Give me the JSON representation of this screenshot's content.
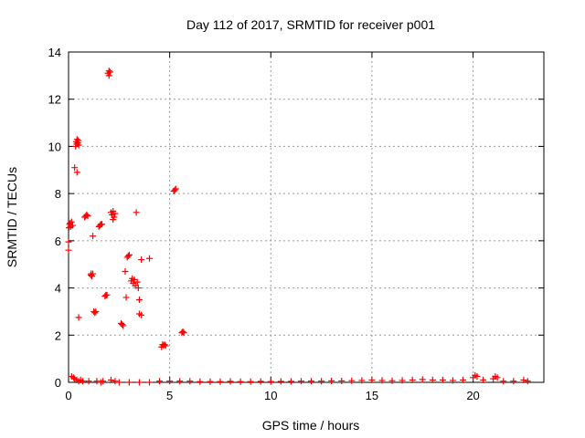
{
  "chart_data": {
    "type": "scatter",
    "title": "Day 112 of 2017, SRMTID for receiver p001",
    "xlabel": "GPS time / hours",
    "ylabel": "SRMTID / TECUs",
    "xlim": [
      0,
      23.5
    ],
    "ylim": [
      0,
      14
    ],
    "xticks": [
      0,
      5,
      10,
      15,
      20
    ],
    "yticks": [
      0,
      2,
      4,
      6,
      8,
      10,
      12,
      14
    ],
    "grid": true,
    "marker": "plus",
    "color": "#ff0000",
    "series": [
      {
        "name": "SRMTID",
        "points": [
          [
            0.0,
            5.6
          ],
          [
            0.0,
            5.95
          ],
          [
            0.02,
            6.55
          ],
          [
            0.05,
            6.7
          ],
          [
            0.08,
            6.75
          ],
          [
            0.1,
            6.6
          ],
          [
            0.15,
            6.8
          ],
          [
            0.2,
            6.65
          ],
          [
            0.15,
            0.25
          ],
          [
            0.25,
            0.2
          ],
          [
            0.3,
            0.15
          ],
          [
            0.4,
            0.1
          ],
          [
            0.5,
            0.05
          ],
          [
            0.6,
            0.1
          ],
          [
            0.7,
            0.05
          ],
          [
            0.3,
            9.1
          ],
          [
            0.35,
            10.0
          ],
          [
            0.38,
            10.2
          ],
          [
            0.4,
            10.1
          ],
          [
            0.42,
            10.3
          ],
          [
            0.45,
            10.15
          ],
          [
            0.48,
            10.25
          ],
          [
            0.5,
            10.05
          ],
          [
            0.42,
            8.9
          ],
          [
            0.5,
            2.75
          ],
          [
            0.8,
            7.0
          ],
          [
            0.85,
            7.05
          ],
          [
            0.9,
            7.1
          ],
          [
            0.95,
            7.05
          ],
          [
            1.0,
            0.05
          ],
          [
            1.1,
            4.55
          ],
          [
            1.12,
            4.6
          ],
          [
            1.15,
            4.5
          ],
          [
            1.2,
            4.6
          ],
          [
            1.2,
            6.2
          ],
          [
            1.25,
            3.0
          ],
          [
            1.3,
            2.95
          ],
          [
            1.35,
            3.0
          ],
          [
            1.4,
            0.05
          ],
          [
            1.6,
            0.0
          ],
          [
            1.5,
            6.6
          ],
          [
            1.55,
            6.65
          ],
          [
            1.6,
            6.7
          ],
          [
            1.65,
            6.7
          ],
          [
            1.7,
            0.05
          ],
          [
            1.8,
            3.65
          ],
          [
            1.85,
            3.7
          ],
          [
            1.9,
            3.7
          ],
          [
            1.95,
            13.1
          ],
          [
            2.0,
            13.2
          ],
          [
            2.05,
            13.15
          ],
          [
            2.0,
            13.0
          ],
          [
            2.1,
            7.2
          ],
          [
            2.15,
            7.1
          ],
          [
            2.2,
            7.25
          ],
          [
            2.25,
            7.0
          ],
          [
            2.3,
            7.15
          ],
          [
            2.2,
            6.9
          ],
          [
            2.1,
            0.1
          ],
          [
            2.3,
            0.05
          ],
          [
            2.5,
            0.0
          ],
          [
            2.6,
            2.5
          ],
          [
            2.65,
            2.45
          ],
          [
            2.7,
            2.4
          ],
          [
            2.8,
            4.7
          ],
          [
            2.85,
            3.6
          ],
          [
            2.9,
            5.3
          ],
          [
            2.95,
            5.35
          ],
          [
            3.0,
            5.4
          ],
          [
            3.1,
            4.3
          ],
          [
            3.15,
            4.4
          ],
          [
            3.2,
            4.2
          ],
          [
            3.25,
            4.35
          ],
          [
            3.3,
            4.1
          ],
          [
            3.35,
            7.2
          ],
          [
            3.4,
            4.25
          ],
          [
            3.45,
            4.0
          ],
          [
            3.5,
            3.5
          ],
          [
            3.5,
            2.9
          ],
          [
            3.6,
            2.85
          ],
          [
            3.6,
            5.2
          ],
          [
            3.0,
            0.0
          ],
          [
            3.5,
            0.0
          ],
          [
            4.0,
            0.0
          ],
          [
            4.0,
            5.25
          ],
          [
            4.6,
            1.5
          ],
          [
            4.65,
            1.6
          ],
          [
            4.7,
            1.55
          ],
          [
            4.75,
            1.6
          ],
          [
            4.8,
            1.55
          ],
          [
            5.2,
            8.1
          ],
          [
            5.25,
            8.15
          ],
          [
            5.3,
            8.2
          ],
          [
            5.6,
            2.1
          ],
          [
            5.65,
            2.15
          ],
          [
            5.7,
            2.1
          ],
          [
            4.5,
            0.05
          ],
          [
            5.0,
            0.05
          ],
          [
            5.5,
            0.05
          ],
          [
            6.0,
            0.05
          ],
          [
            6.5,
            0.03
          ],
          [
            7.0,
            0.03
          ],
          [
            7.5,
            0.03
          ],
          [
            8.0,
            0.04
          ],
          [
            8.5,
            0.03
          ],
          [
            9.0,
            0.03
          ],
          [
            9.5,
            0.04
          ],
          [
            10.0,
            0.03
          ],
          [
            10.5,
            0.04
          ],
          [
            11.0,
            0.04
          ],
          [
            11.5,
            0.05
          ],
          [
            12.0,
            0.05
          ],
          [
            12.5,
            0.05
          ],
          [
            13.0,
            0.06
          ],
          [
            13.5,
            0.06
          ],
          [
            14.0,
            0.07
          ],
          [
            14.5,
            0.08
          ],
          [
            15.0,
            0.1
          ],
          [
            15.5,
            0.08
          ],
          [
            16.0,
            0.07
          ],
          [
            16.5,
            0.08
          ],
          [
            17.0,
            0.1
          ],
          [
            17.5,
            0.12
          ],
          [
            18.0,
            0.1
          ],
          [
            18.5,
            0.1
          ],
          [
            19.0,
            0.08
          ],
          [
            19.5,
            0.1
          ],
          [
            20.0,
            0.2
          ],
          [
            20.1,
            0.3
          ],
          [
            20.2,
            0.25
          ],
          [
            20.5,
            0.1
          ],
          [
            21.0,
            0.15
          ],
          [
            21.1,
            0.25
          ],
          [
            21.2,
            0.2
          ],
          [
            21.5,
            0.05
          ],
          [
            22.0,
            0.05
          ],
          [
            22.5,
            0.1
          ],
          [
            22.7,
            0.05
          ]
        ]
      }
    ]
  }
}
